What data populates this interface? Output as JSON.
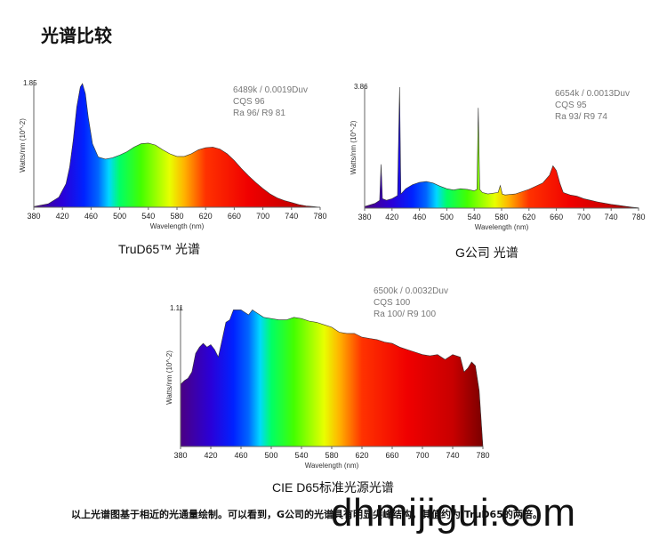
{
  "page_title": "光谱比较",
  "footer_text": "以上光谱图基于相近的光通量绘制。可以看到，G公司的光谱具有明显尖峰结构，其值约为 TruD65的两倍。",
  "watermark": "dhmijigui.com",
  "chart_data": [
    {
      "type": "area",
      "caption": "TruD65™ 光谱",
      "ylabel": "Watts/nm (10^-2)",
      "xlabel": "Wavelength (nm)",
      "ymax_label": "1.85",
      "xlim": [
        380,
        780
      ],
      "ylim": [
        0,
        1.85
      ],
      "x_ticks": [
        380,
        420,
        460,
        500,
        540,
        580,
        620,
        660,
        700,
        740,
        780
      ],
      "notes": [
        "6489k / 0.0019Duv",
        "CQS 96",
        "Ra 96/ R9 81"
      ],
      "x": [
        380,
        400,
        415,
        425,
        430,
        435,
        440,
        445,
        448,
        452,
        456,
        462,
        470,
        480,
        490,
        500,
        510,
        520,
        530,
        540,
        550,
        560,
        570,
        580,
        590,
        600,
        610,
        620,
        630,
        640,
        650,
        660,
        670,
        680,
        690,
        700,
        710,
        720,
        730,
        740,
        750,
        760,
        770,
        780
      ],
      "y": [
        0.01,
        0.05,
        0.15,
        0.35,
        0.6,
        1.0,
        1.5,
        1.8,
        1.85,
        1.7,
        1.35,
        0.95,
        0.75,
        0.72,
        0.74,
        0.78,
        0.83,
        0.9,
        0.95,
        0.96,
        0.93,
        0.86,
        0.8,
        0.76,
        0.76,
        0.8,
        0.86,
        0.89,
        0.9,
        0.87,
        0.8,
        0.7,
        0.58,
        0.47,
        0.37,
        0.28,
        0.2,
        0.14,
        0.1,
        0.07,
        0.04,
        0.02,
        0.01,
        0.0
      ]
    },
    {
      "type": "area",
      "caption": "G公司 光谱",
      "ylabel": "Watts/nm (10^-2)",
      "xlabel": "Wavelength (nm)",
      "ymax_label": "3.86",
      "xlim": [
        380,
        780
      ],
      "ylim": [
        0,
        3.86
      ],
      "x_ticks": [
        380,
        420,
        460,
        500,
        540,
        580,
        620,
        660,
        700,
        740,
        780
      ],
      "x_tick_labels": [
        "380",
        "420",
        "460",
        "500",
        "540",
        "580",
        "620",
        "660",
        "700",
        "740",
        "780"
      ],
      "notes": [
        "6654k / 0.0013Duv",
        "CQS 95",
        "Ra 93/ R9 74"
      ],
      "x": [
        380,
        395,
        402,
        404,
        406,
        412,
        420,
        428,
        431,
        433,
        435,
        440,
        450,
        460,
        470,
        480,
        490,
        500,
        510,
        520,
        530,
        540,
        544,
        546,
        548,
        552,
        560,
        575,
        578,
        581,
        585,
        600,
        620,
        640,
        650,
        655,
        660,
        665,
        670,
        680,
        690,
        700,
        710,
        720,
        730,
        740,
        750,
        760,
        770,
        780
      ],
      "y": [
        0.05,
        0.15,
        0.25,
        1.4,
        0.3,
        0.25,
        0.3,
        0.4,
        3.86,
        0.45,
        0.5,
        0.62,
        0.75,
        0.82,
        0.85,
        0.8,
        0.7,
        0.62,
        0.58,
        0.62,
        0.6,
        0.55,
        0.6,
        3.2,
        0.6,
        0.5,
        0.45,
        0.5,
        0.72,
        0.45,
        0.42,
        0.45,
        0.6,
        0.8,
        1.05,
        1.35,
        1.2,
        0.8,
        0.5,
        0.42,
        0.38,
        0.3,
        0.25,
        0.2,
        0.16,
        0.12,
        0.09,
        0.06,
        0.03,
        0.01
      ]
    },
    {
      "type": "area",
      "caption": "CIE D65标准光源光谱",
      "ylabel": "Watts/nm (10^-2)",
      "xlabel": "Wavelength (nm)",
      "ymax_label": "1.11",
      "xlim": [
        380,
        780
      ],
      "ylim": [
        0,
        1.11
      ],
      "x_ticks": [
        380,
        420,
        460,
        500,
        540,
        580,
        620,
        660,
        700,
        740,
        780
      ],
      "notes": [
        "6500k / 0.0032Duv",
        "CQS 100",
        "Ra 100/ R9 100"
      ],
      "x": [
        380,
        385,
        390,
        395,
        400,
        405,
        410,
        415,
        420,
        425,
        430,
        435,
        440,
        445,
        450,
        455,
        460,
        465,
        470,
        475,
        480,
        490,
        500,
        510,
        520,
        530,
        540,
        550,
        560,
        570,
        580,
        590,
        600,
        610,
        620,
        630,
        640,
        650,
        660,
        670,
        680,
        690,
        700,
        710,
        720,
        730,
        740,
        750,
        755,
        760,
        765,
        770,
        775,
        780
      ],
      "y": [
        0.5,
        0.53,
        0.55,
        0.6,
        0.75,
        0.8,
        0.83,
        0.8,
        0.82,
        0.78,
        0.72,
        0.86,
        1.0,
        1.02,
        1.1,
        1.1,
        1.1,
        1.08,
        1.06,
        1.1,
        1.08,
        1.04,
        1.03,
        1.02,
        1.02,
        1.04,
        1.03,
        1.01,
        1.0,
        0.98,
        0.96,
        0.92,
        0.91,
        0.91,
        0.88,
        0.87,
        0.86,
        0.84,
        0.83,
        0.8,
        0.78,
        0.76,
        0.74,
        0.73,
        0.74,
        0.7,
        0.74,
        0.72,
        0.6,
        0.63,
        0.68,
        0.65,
        0.45,
        0.0
      ]
    }
  ]
}
